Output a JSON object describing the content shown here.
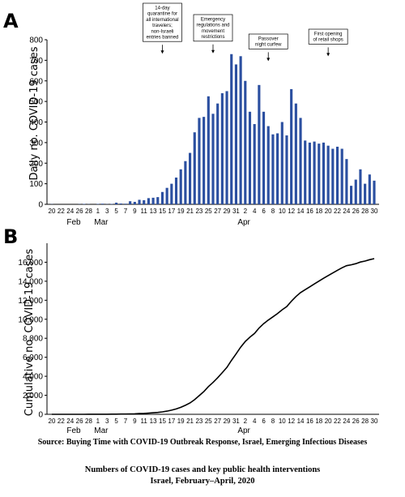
{
  "panels": {
    "a": "A",
    "b": "B"
  },
  "chart_data": [
    {
      "type": "bar",
      "ylabel": "Daily no. COVID-19 cases",
      "ylim": [
        0,
        800
      ],
      "yticks": [
        0,
        100,
        200,
        300,
        400,
        500,
        600,
        700,
        800
      ],
      "x_tick_labels": [
        "20",
        "22",
        "24",
        "26",
        "28",
        "1",
        "3",
        "5",
        "7",
        "9",
        "11",
        "13",
        "15",
        "17",
        "19",
        "21",
        "23",
        "25",
        "27",
        "29",
        "31",
        "2",
        "4",
        "6",
        "8",
        "10",
        "12",
        "14",
        "16",
        "18",
        "20",
        "22",
        "24",
        "26",
        "28",
        "30"
      ],
      "months": [
        "Feb",
        "Mar",
        "Apr"
      ],
      "color": "#2b4fa0",
      "x": [
        "Feb 20",
        "Feb 21",
        "Feb 22",
        "Feb 23",
        "Feb 24",
        "Feb 25",
        "Feb 26",
        "Feb 27",
        "Feb 28",
        "Feb 29",
        "Mar 1",
        "Mar 2",
        "Mar 3",
        "Mar 4",
        "Mar 5",
        "Mar 6",
        "Mar 7",
        "Mar 8",
        "Mar 9",
        "Mar 10",
        "Mar 11",
        "Mar 12",
        "Mar 13",
        "Mar 14",
        "Mar 15",
        "Mar 16",
        "Mar 17",
        "Mar 18",
        "Mar 19",
        "Mar 20",
        "Mar 21",
        "Mar 22",
        "Mar 23",
        "Mar 24",
        "Mar 25",
        "Mar 26",
        "Mar 27",
        "Mar 28",
        "Mar 29",
        "Mar 30",
        "Mar 31",
        "Apr 1",
        "Apr 2",
        "Apr 3",
        "Apr 4",
        "Apr 5",
        "Apr 6",
        "Apr 7",
        "Apr 8",
        "Apr 9",
        "Apr 10",
        "Apr 11",
        "Apr 12",
        "Apr 13",
        "Apr 14",
        "Apr 15",
        "Apr 16",
        "Apr 17",
        "Apr 18",
        "Apr 19",
        "Apr 20",
        "Apr 21",
        "Apr 22",
        "Apr 23",
        "Apr 24",
        "Apr 25",
        "Apr 26",
        "Apr 27",
        "Apr 28",
        "Apr 29",
        "Apr 30"
      ],
      "values": [
        1,
        0,
        0,
        0,
        0,
        0,
        1,
        2,
        1,
        0,
        2,
        3,
        1,
        2,
        8,
        4,
        3,
        15,
        12,
        22,
        20,
        30,
        32,
        35,
        60,
        80,
        100,
        130,
        170,
        210,
        250,
        350,
        420,
        425,
        525,
        440,
        490,
        540,
        550,
        730,
        680,
        720,
        600,
        450,
        390,
        580,
        450,
        380,
        340,
        345,
        400,
        335,
        560,
        490,
        420,
        310,
        300,
        305,
        295,
        300,
        285,
        270,
        280,
        270,
        220,
        90,
        120,
        170,
        100,
        145,
        115
      ],
      "annotations": [
        {
          "lines": [
            "14-day",
            "quarantine for",
            "all international",
            "travelers;",
            "non-Israeli",
            "entries banned"
          ],
          "date": "Mar 15"
        },
        {
          "lines": [
            "Emergency",
            "regulations and",
            "movement",
            "restrictions"
          ],
          "date": "Mar 26"
        },
        {
          "lines": [
            "Passover",
            "night curfew"
          ],
          "date": "Apr 7"
        },
        {
          "lines": [
            "First opening",
            "of retail shops"
          ],
          "date": "Apr 20"
        }
      ]
    },
    {
      "type": "line",
      "ylabel": "Cumulative no. COVID-19 cases",
      "ylim": [
        0,
        18000
      ],
      "yticks": [
        0,
        2000,
        4000,
        6000,
        8000,
        10000,
        12000,
        14000,
        16000
      ],
      "ytick_labels": [
        "0",
        "2,000",
        "4,000",
        "6,000",
        "8,000",
        "10,000",
        "12,000",
        "14,000",
        "16,000"
      ],
      "x_tick_labels": [
        "20",
        "22",
        "24",
        "26",
        "28",
        "1",
        "3",
        "5",
        "7",
        "9",
        "11",
        "13",
        "15",
        "17",
        "19",
        "21",
        "23",
        "25",
        "27",
        "29",
        "31",
        "2",
        "4",
        "6",
        "8",
        "10",
        "12",
        "14",
        "16",
        "18",
        "20",
        "22",
        "24",
        "26",
        "28",
        "30"
      ],
      "months": [
        "Feb",
        "Mar",
        "Apr"
      ],
      "x_start": "Feb 20",
      "color": "#000000"
    }
  ],
  "source": "Source: Buying Time with COVID-19 Outbreak Response, Israel, Emerging Infectious Diseases",
  "caption": {
    "line1": "Numbers of COVID-19 cases and key public health interventions",
    "line2": "Israel, February–April, 2020"
  }
}
